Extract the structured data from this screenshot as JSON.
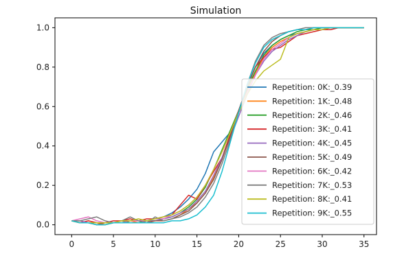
{
  "chart_data": {
    "type": "line",
    "title": "Simulation",
    "xlabel": "",
    "ylabel": "",
    "xlim": [
      -2,
      36.5
    ],
    "ylim": [
      -0.05,
      1.05
    ],
    "xticks": [
      0,
      5,
      10,
      15,
      20,
      25,
      30,
      35
    ],
    "yticks": [
      0.0,
      0.2,
      0.4,
      0.6,
      0.8,
      1.0
    ],
    "xtick_labels": [
      "0",
      "5",
      "10",
      "15",
      "20",
      "25",
      "30",
      "35"
    ],
    "ytick_labels": [
      "0.0",
      "0.2",
      "0.4",
      "0.6",
      "0.8",
      "1.0"
    ],
    "grid": false,
    "legend_position": "lower-right",
    "x": [
      0,
      1,
      2,
      3,
      4,
      5,
      6,
      7,
      8,
      9,
      10,
      11,
      12,
      13,
      14,
      15,
      16,
      17,
      18,
      19,
      20,
      21,
      22,
      23,
      24,
      25,
      26,
      27,
      28,
      29,
      30,
      31,
      32,
      33,
      34,
      35
    ],
    "series": [
      {
        "name": "Repetition: 0K:_0.39",
        "color": "#1f77b4",
        "values": [
          0.02,
          0.01,
          0.01,
          0.0,
          0.0,
          0.01,
          0.01,
          0.01,
          0.01,
          0.02,
          0.03,
          0.04,
          0.06,
          0.09,
          0.13,
          0.18,
          0.26,
          0.37,
          0.42,
          0.47,
          0.58,
          0.7,
          0.8,
          0.87,
          0.91,
          0.94,
          0.96,
          0.97,
          0.98,
          0.99,
          0.99,
          1.0,
          1.0,
          1.0,
          1.0,
          1.0
        ]
      },
      {
        "name": "Repetition: 1K:_0.48",
        "color": "#ff7f0e",
        "values": [
          0.02,
          0.01,
          0.02,
          0.01,
          0.0,
          0.01,
          0.01,
          0.02,
          0.01,
          0.01,
          0.02,
          0.02,
          0.03,
          0.05,
          0.08,
          0.11,
          0.16,
          0.24,
          0.34,
          0.45,
          0.57,
          0.68,
          0.77,
          0.85,
          0.9,
          0.93,
          0.95,
          0.97,
          0.98,
          0.99,
          0.99,
          1.0,
          1.0,
          1.0,
          1.0,
          1.0
        ]
      },
      {
        "name": "Repetition: 2K:_0.46",
        "color": "#2ca02c",
        "values": [
          0.02,
          0.01,
          0.01,
          0.01,
          0.01,
          0.01,
          0.02,
          0.01,
          0.01,
          0.02,
          0.02,
          0.03,
          0.04,
          0.06,
          0.09,
          0.13,
          0.19,
          0.28,
          0.38,
          0.48,
          0.58,
          0.69,
          0.78,
          0.86,
          0.91,
          0.94,
          0.96,
          0.98,
          0.99,
          0.99,
          1.0,
          1.0,
          1.0,
          1.0,
          1.0,
          1.0
        ]
      },
      {
        "name": "Repetition: 3K:_0.41",
        "color": "#d62728",
        "values": [
          0.02,
          0.01,
          0.02,
          0.01,
          0.01,
          0.02,
          0.02,
          0.03,
          0.02,
          0.03,
          0.03,
          0.04,
          0.05,
          0.1,
          0.15,
          0.13,
          0.2,
          0.27,
          0.34,
          0.46,
          0.58,
          0.7,
          0.8,
          0.85,
          0.89,
          0.9,
          0.93,
          0.96,
          0.97,
          0.98,
          0.99,
          0.99,
          1.0,
          1.0,
          1.0,
          1.0
        ]
      },
      {
        "name": "Repetition: 4K:_0.45",
        "color": "#9467bd",
        "values": [
          0.02,
          0.02,
          0.01,
          0.01,
          0.01,
          0.01,
          0.01,
          0.02,
          0.02,
          0.02,
          0.02,
          0.03,
          0.04,
          0.06,
          0.08,
          0.12,
          0.17,
          0.25,
          0.34,
          0.44,
          0.55,
          0.66,
          0.76,
          0.83,
          0.88,
          0.91,
          0.94,
          0.96,
          0.98,
          0.99,
          0.99,
          1.0,
          1.0,
          1.0,
          1.0,
          1.0
        ]
      },
      {
        "name": "Repetition: 5K:_0.49",
        "color": "#8c564b",
        "values": [
          0.02,
          0.01,
          0.01,
          0.0,
          0.01,
          0.01,
          0.01,
          0.01,
          0.01,
          0.01,
          0.02,
          0.02,
          0.03,
          0.05,
          0.07,
          0.11,
          0.16,
          0.23,
          0.33,
          0.45,
          0.58,
          0.7,
          0.8,
          0.88,
          0.93,
          0.96,
          0.98,
          0.99,
          0.99,
          1.0,
          1.0,
          1.0,
          1.0,
          1.0,
          1.0,
          1.0
        ]
      },
      {
        "name": "Repetition: 6K:_0.42",
        "color": "#e377c2",
        "values": [
          0.02,
          0.03,
          0.04,
          0.02,
          0.01,
          0.01,
          0.02,
          0.02,
          0.02,
          0.02,
          0.03,
          0.03,
          0.05,
          0.07,
          0.1,
          0.14,
          0.2,
          0.28,
          0.37,
          0.47,
          0.57,
          0.67,
          0.76,
          0.84,
          0.89,
          0.92,
          0.95,
          0.97,
          0.98,
          0.99,
          0.99,
          1.0,
          1.0,
          1.0,
          1.0,
          1.0
        ]
      },
      {
        "name": "Repetition: 7K:_0.53",
        "color": "#7f7f7f",
        "values": [
          0.02,
          0.02,
          0.03,
          0.04,
          0.02,
          0.01,
          0.02,
          0.04,
          0.02,
          0.01,
          0.04,
          0.02,
          0.03,
          0.04,
          0.06,
          0.09,
          0.14,
          0.21,
          0.31,
          0.43,
          0.57,
          0.71,
          0.83,
          0.91,
          0.95,
          0.97,
          0.98,
          0.99,
          1.0,
          1.0,
          1.0,
          1.0,
          1.0,
          1.0,
          1.0,
          1.0
        ]
      },
      {
        "name": "Repetition: 8K:_0.41",
        "color": "#bcbd22",
        "values": [
          0.02,
          0.01,
          0.01,
          0.01,
          0.01,
          0.01,
          0.02,
          0.02,
          0.03,
          0.02,
          0.03,
          0.04,
          0.05,
          0.07,
          0.1,
          0.14,
          0.2,
          0.28,
          0.37,
          0.47,
          0.57,
          0.66,
          0.73,
          0.78,
          0.81,
          0.84,
          0.95,
          0.97,
          0.98,
          0.99,
          0.99,
          1.0,
          1.0,
          1.0,
          1.0,
          1.0
        ]
      },
      {
        "name": "Repetition: 9K:_0.55",
        "color": "#17becf",
        "values": [
          0.02,
          0.01,
          0.01,
          0.0,
          0.0,
          0.01,
          0.01,
          0.01,
          0.01,
          0.01,
          0.01,
          0.01,
          0.02,
          0.02,
          0.03,
          0.05,
          0.09,
          0.15,
          0.27,
          0.42,
          0.57,
          0.71,
          0.82,
          0.9,
          0.94,
          0.96,
          0.98,
          0.99,
          0.99,
          1.0,
          1.0,
          1.0,
          1.0,
          1.0,
          1.0,
          1.0
        ]
      }
    ]
  }
}
